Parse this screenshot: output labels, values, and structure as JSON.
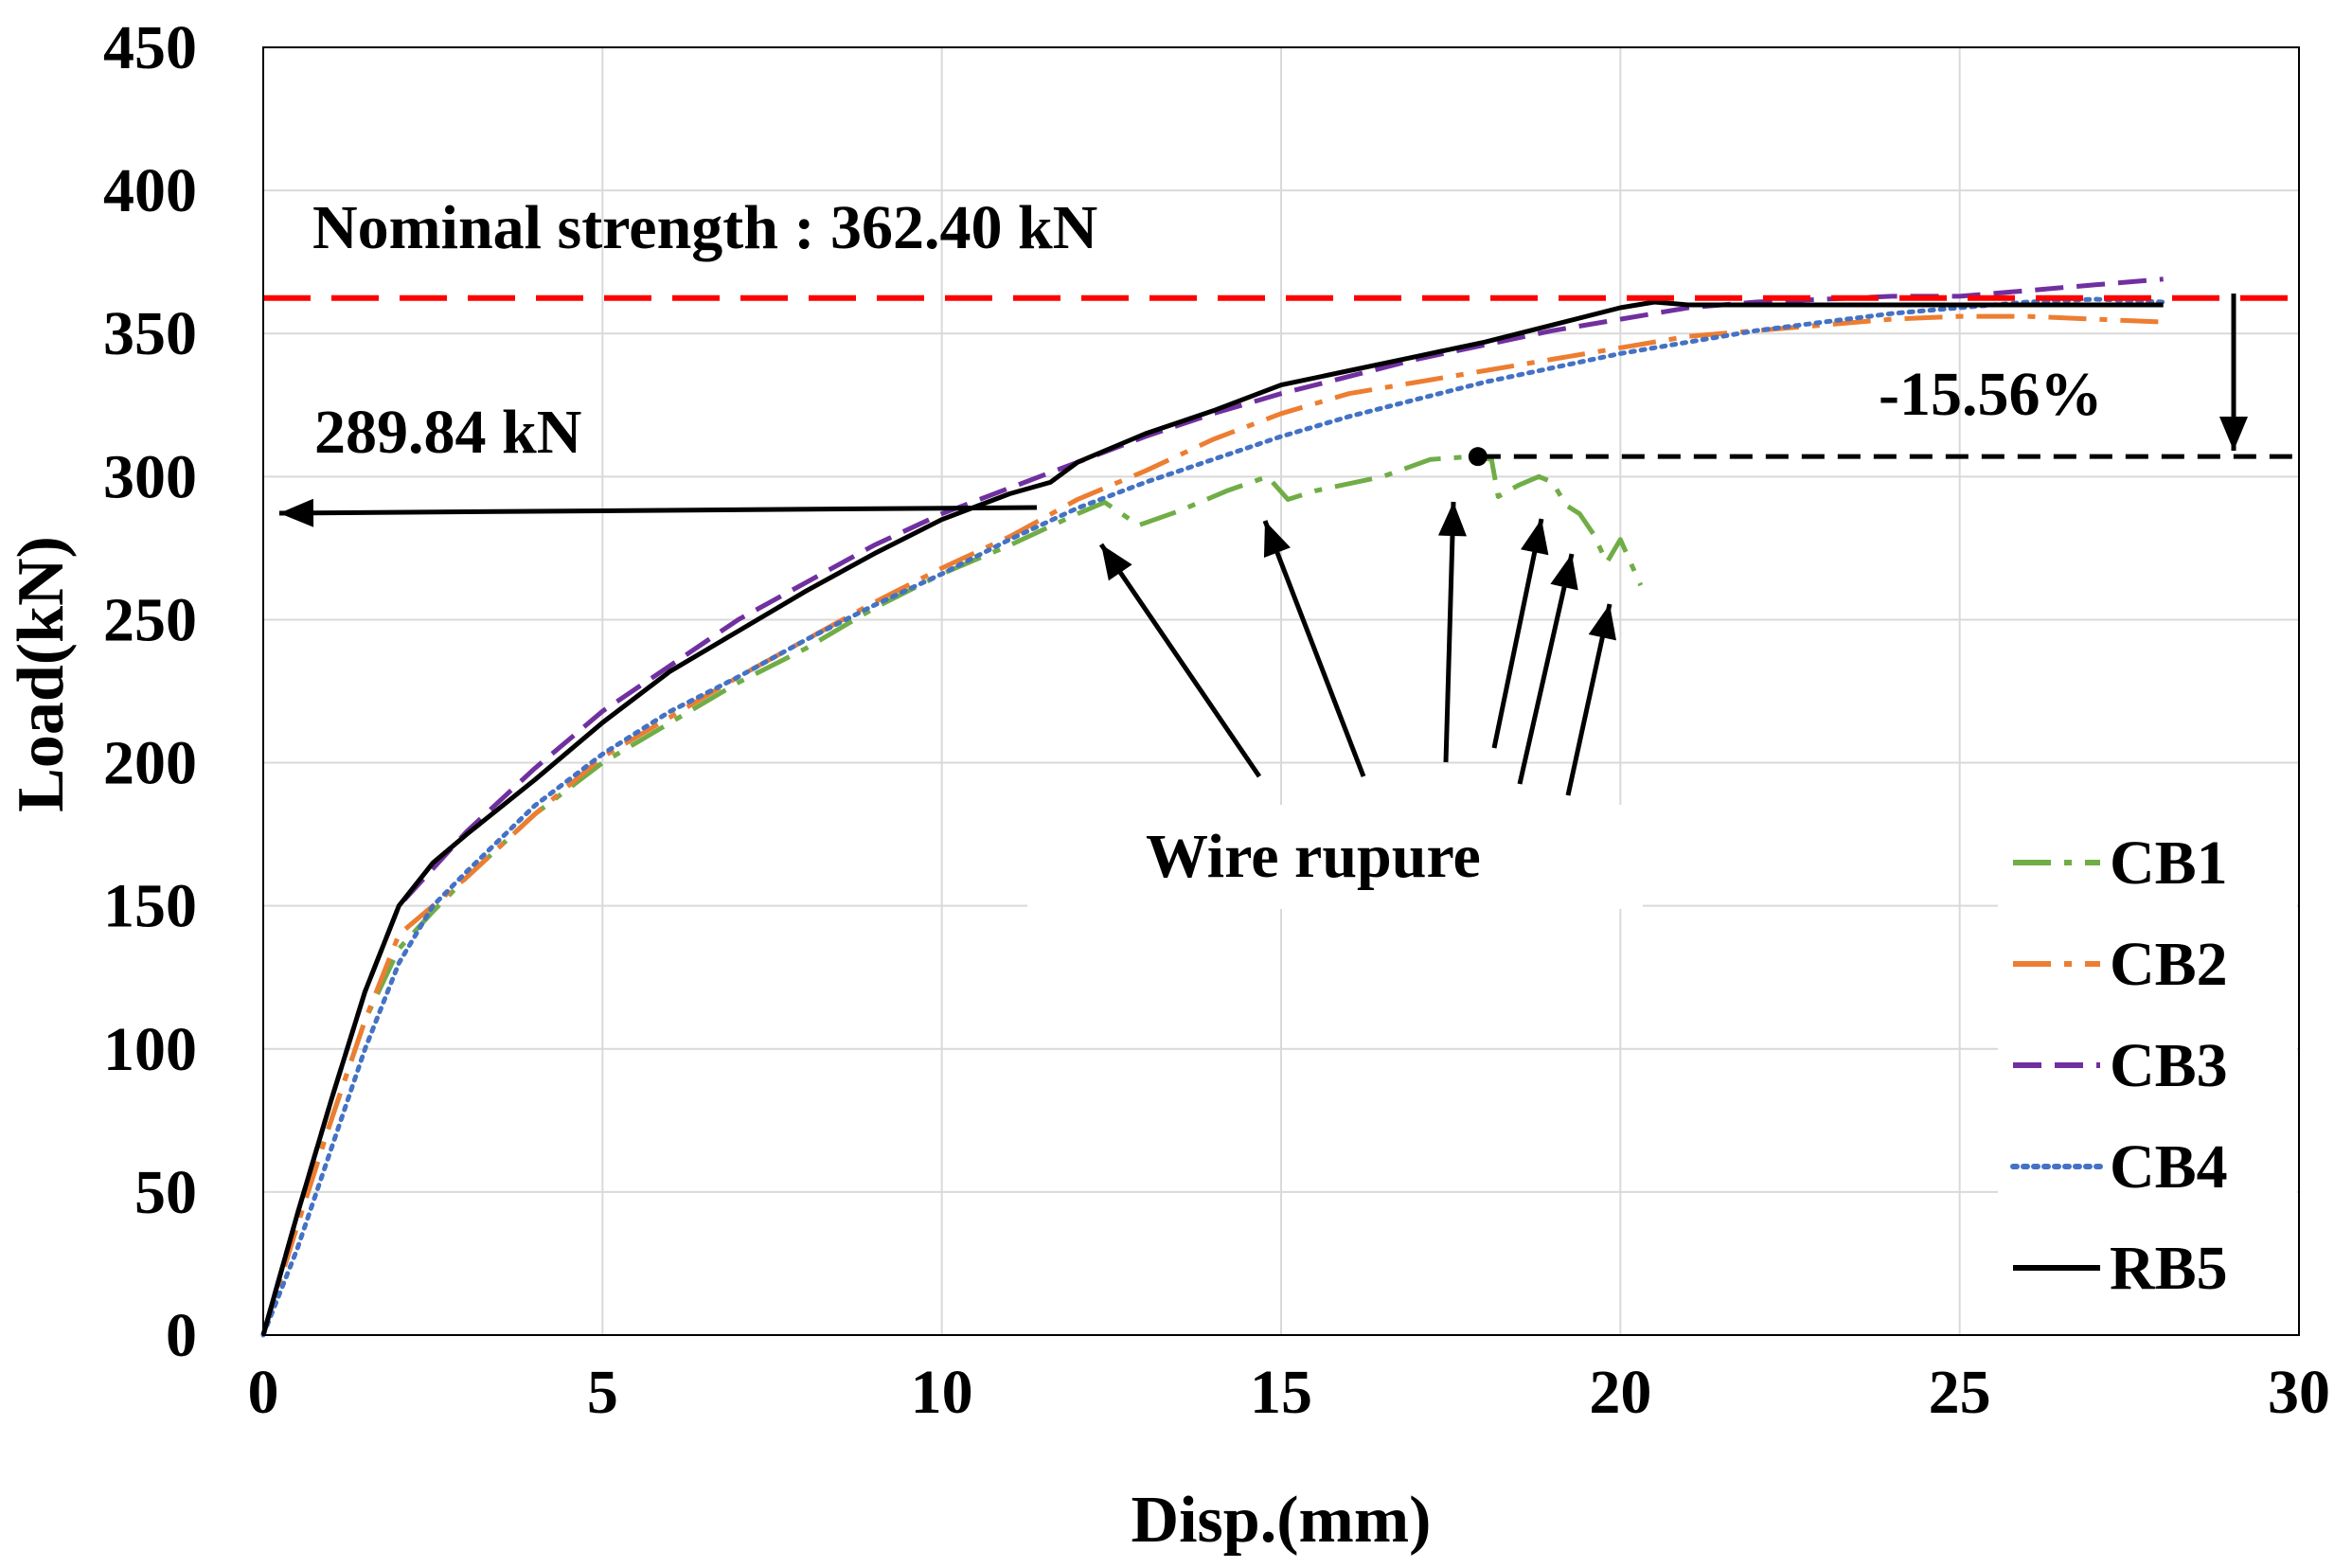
{
  "chart_data": {
    "type": "line",
    "title": "",
    "xlabel": "Disp.(mm)",
    "ylabel": "Load(kN)",
    "xlim": [
      0,
      30
    ],
    "ylim": [
      0,
      450
    ],
    "xticks": [
      0,
      5,
      10,
      15,
      20,
      25,
      30
    ],
    "yticks": [
      0,
      50,
      100,
      150,
      200,
      250,
      300,
      350,
      400,
      450
    ],
    "grid": true,
    "legend_position": "bottom-right",
    "series": [
      {
        "name": "CB1",
        "color": "#70ad47",
        "dash": "long-dash-dot",
        "x": [
          0,
          0.5,
          1,
          1.5,
          2,
          2.5,
          3,
          4,
          5,
          6,
          7,
          8,
          9,
          10,
          11,
          12,
          12.4,
          12.9,
          13.5,
          14.2,
          14.8,
          15.1,
          15.5,
          16.5,
          17.2,
          17.8,
          18.1,
          18.2,
          18.5,
          18.8,
          19.0,
          19.2,
          19.4,
          19.6,
          19.8,
          20.0,
          20.3
        ],
        "values": [
          0,
          40,
          75,
          110,
          135,
          148,
          160,
          182,
          200,
          214,
          228,
          240,
          254,
          266,
          276,
          287,
          291,
          283,
          288,
          295,
          300,
          292,
          295,
          300,
          306,
          307,
          306,
          293,
          297,
          300,
          298,
          290,
          287,
          280,
          270,
          278,
          262
        ]
      },
      {
        "name": "CB2",
        "color": "#ed7d31",
        "dash": "long-dash-dot",
        "x": [
          0,
          0.5,
          1,
          1.5,
          2,
          2.5,
          3,
          4,
          5,
          6,
          7,
          8,
          9,
          10,
          11,
          12,
          13,
          14,
          15,
          16,
          17,
          18,
          19,
          20,
          21,
          22,
          23,
          24,
          25,
          26,
          27,
          28
        ],
        "values": [
          0,
          38,
          75,
          110,
          140,
          150,
          160,
          182,
          202,
          216,
          230,
          243,
          256,
          268,
          279,
          292,
          302,
          313,
          322,
          329,
          333,
          337,
          341,
          345,
          349,
          351,
          353,
          355,
          356,
          356,
          355,
          354
        ]
      },
      {
        "name": "CB3",
        "color": "#7030a0",
        "dash": "dash",
        "x": [
          0,
          0.5,
          1,
          1.5,
          2,
          2.5,
          3,
          4,
          5,
          6,
          7,
          8,
          9,
          10,
          11,
          12,
          13,
          14,
          15,
          16,
          17,
          18,
          19,
          20,
          21,
          22,
          23,
          24,
          25,
          26,
          27,
          28
        ],
        "values": [
          0,
          42,
          82,
          120,
          150,
          163,
          176,
          198,
          218,
          234,
          250,
          263,
          276,
          287,
          296,
          305,
          314,
          322,
          329,
          335,
          341,
          346,
          351,
          355,
          359,
          361,
          362,
          363,
          363,
          365,
          367,
          369
        ]
      },
      {
        "name": "CB4",
        "color": "#4472c4",
        "dash": "dot",
        "x": [
          0,
          0.5,
          1,
          1.5,
          2,
          2.5,
          3,
          4,
          5,
          6,
          7,
          8,
          9,
          10,
          11,
          12,
          13,
          14,
          15,
          16,
          17,
          18,
          19,
          20,
          21,
          22,
          23,
          24,
          25,
          26,
          27,
          28
        ],
        "values": [
          0,
          30,
          65,
          100,
          130,
          150,
          162,
          185,
          203,
          218,
          230,
          243,
          255,
          266,
          278,
          289,
          298,
          306,
          314,
          321,
          327,
          333,
          338,
          343,
          347,
          351,
          354,
          357,
          359,
          361,
          362,
          361
        ]
      },
      {
        "name": "RB5",
        "color": "#000000",
        "dash": "solid",
        "x": [
          0,
          0.5,
          1,
          1.5,
          2,
          2.5,
          3,
          4,
          5,
          6,
          7,
          8,
          9,
          10,
          11,
          11.6,
          12,
          13,
          14,
          15,
          16,
          17,
          18,
          19,
          20,
          20.5,
          21,
          22,
          23,
          24,
          25,
          26,
          27,
          28
        ],
        "values": [
          0,
          42,
          82,
          120,
          150,
          165,
          175,
          194,
          214,
          232,
          246,
          260,
          273,
          285,
          294,
          298,
          305,
          315,
          323,
          332,
          337,
          342,
          347,
          353,
          359,
          361,
          360,
          360,
          360,
          360,
          360,
          360,
          360,
          360
        ]
      }
    ],
    "reference_lines": [
      {
        "value": 362.4,
        "color": "#ff0000",
        "style": "dash",
        "label": "Nominal strength : 362.40 kN"
      },
      {
        "value": 307,
        "color": "#000000",
        "style": "dash",
        "from_x": 17.9,
        "to_x": 30
      }
    ],
    "annotations": {
      "nominal_strength": "Nominal strength : 362.40 kN",
      "arrow_value": "289.84 kN",
      "drop_percent": "-15.56%",
      "wire_rupture": "Wire rupure"
    },
    "marker_point": {
      "x": 17.9,
      "y": 307
    }
  }
}
